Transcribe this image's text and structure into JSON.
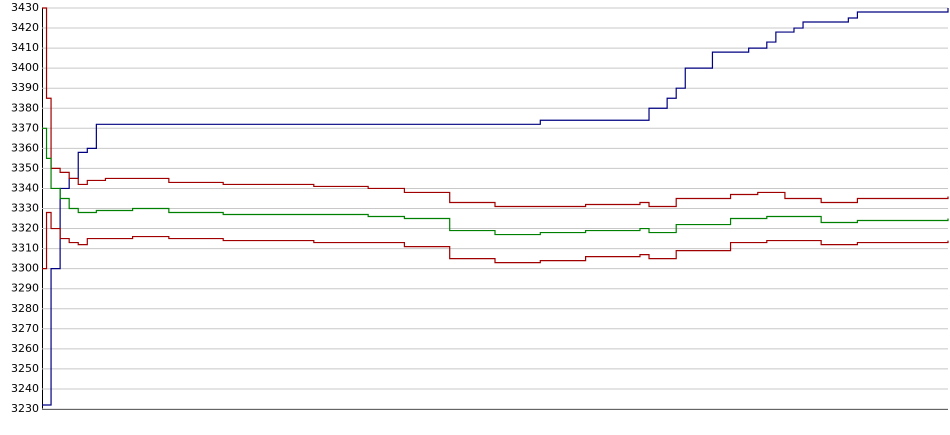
{
  "chart_data": {
    "type": "line",
    "xlim": [
      0,
      100
    ],
    "ylim": [
      3230,
      3430
    ],
    "yticks": [
      3230,
      3240,
      3250,
      3260,
      3270,
      3280,
      3290,
      3300,
      3310,
      3320,
      3330,
      3340,
      3350,
      3360,
      3370,
      3380,
      3390,
      3400,
      3410,
      3420,
      3430
    ],
    "grid": true,
    "series": [
      {
        "color": "#000080",
        "x": [
          0,
          1,
          2,
          3,
          4,
          5,
          6,
          54,
          55,
          66,
          67,
          69,
          70,
          71,
          73,
          74,
          77,
          78,
          80,
          81,
          83,
          84,
          88,
          89,
          90,
          99,
          100
        ],
        "values": [
          3232,
          3300,
          3340,
          3345,
          3358,
          3360,
          3372,
          3372,
          3374,
          3374,
          3380,
          3385,
          3390,
          3400,
          3400,
          3408,
          3408,
          3410,
          3413,
          3418,
          3420,
          3423,
          3423,
          3425,
          3428,
          3428,
          3430
        ]
      },
      {
        "color": "#a00000",
        "x": [
          0,
          0.5,
          1,
          2,
          3,
          4,
          5,
          7,
          10,
          14,
          20,
          30,
          36,
          40,
          45,
          50,
          55,
          60,
          66,
          67,
          70,
          76,
          79,
          82,
          86,
          90,
          100
        ],
        "values": [
          3430,
          3385,
          3350,
          3348,
          3345,
          3342,
          3344,
          3345,
          3345,
          3343,
          3342,
          3341,
          3340,
          3338,
          3333,
          3331,
          3331,
          3332,
          3333,
          3331,
          3335,
          3337,
          3338,
          3335,
          3333,
          3335,
          3336
        ]
      },
      {
        "color": "#008000",
        "x": [
          0,
          0.5,
          1,
          2,
          3,
          4,
          6,
          10,
          14,
          20,
          30,
          36,
          40,
          45,
          50,
          55,
          60,
          66,
          67,
          70,
          76,
          80,
          86,
          90,
          100
        ],
        "values": [
          3370,
          3355,
          3340,
          3335,
          3330,
          3328,
          3329,
          3330,
          3328,
          3327,
          3327,
          3326,
          3325,
          3319,
          3317,
          3318,
          3319,
          3320,
          3318,
          3322,
          3325,
          3326,
          3323,
          3324,
          3325
        ]
      },
      {
        "color": "#a00000",
        "x": [
          0,
          0.5,
          1,
          2,
          3,
          4,
          5,
          10,
          14,
          20,
          30,
          36,
          40,
          45,
          50,
          55,
          60,
          66,
          67,
          70,
          76,
          80,
          86,
          90,
          100
        ],
        "values": [
          3300,
          3328,
          3320,
          3315,
          3313,
          3312,
          3315,
          3316,
          3315,
          3314,
          3313,
          3313,
          3311,
          3305,
          3303,
          3304,
          3306,
          3307,
          3305,
          3309,
          3313,
          3314,
          3312,
          3313,
          3314
        ]
      }
    ]
  }
}
